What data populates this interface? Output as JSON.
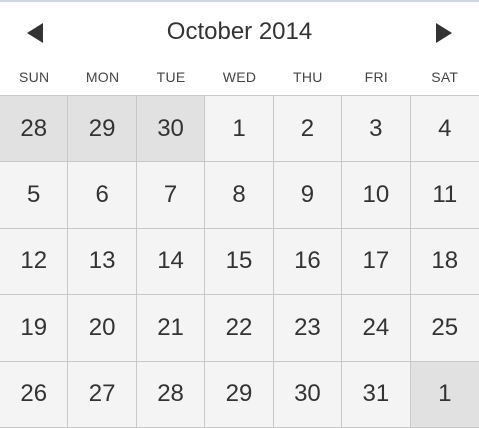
{
  "calendar": {
    "title": "October 2014",
    "prev_icon": "triangle-left-icon",
    "next_icon": "triangle-right-icon",
    "weekdays": [
      "SUN",
      "MON",
      "TUE",
      "WED",
      "THU",
      "FRI",
      "SAT"
    ],
    "weeks": [
      [
        {
          "day": "28",
          "other_month": true
        },
        {
          "day": "29",
          "other_month": true
        },
        {
          "day": "30",
          "other_month": true
        },
        {
          "day": "1"
        },
        {
          "day": "2"
        },
        {
          "day": "3"
        },
        {
          "day": "4"
        }
      ],
      [
        {
          "day": "5"
        },
        {
          "day": "6"
        },
        {
          "day": "7"
        },
        {
          "day": "8"
        },
        {
          "day": "9"
        },
        {
          "day": "10"
        },
        {
          "day": "11"
        }
      ],
      [
        {
          "day": "12"
        },
        {
          "day": "13"
        },
        {
          "day": "14"
        },
        {
          "day": "15"
        },
        {
          "day": "16"
        },
        {
          "day": "17"
        },
        {
          "day": "18"
        }
      ],
      [
        {
          "day": "19"
        },
        {
          "day": "20"
        },
        {
          "day": "21"
        },
        {
          "day": "22"
        },
        {
          "day": "23"
        },
        {
          "day": "24"
        },
        {
          "day": "25"
        }
      ],
      [
        {
          "day": "26"
        },
        {
          "day": "27"
        },
        {
          "day": "28"
        },
        {
          "day": "29"
        },
        {
          "day": "30"
        },
        {
          "day": "31"
        },
        {
          "day": "1",
          "other_month": true
        }
      ]
    ]
  },
  "colors": {
    "text": "#333333",
    "cell_background": "#f4f4f4",
    "other_month_background": "#e1e1e1",
    "grid_line": "#c8c8c8"
  }
}
